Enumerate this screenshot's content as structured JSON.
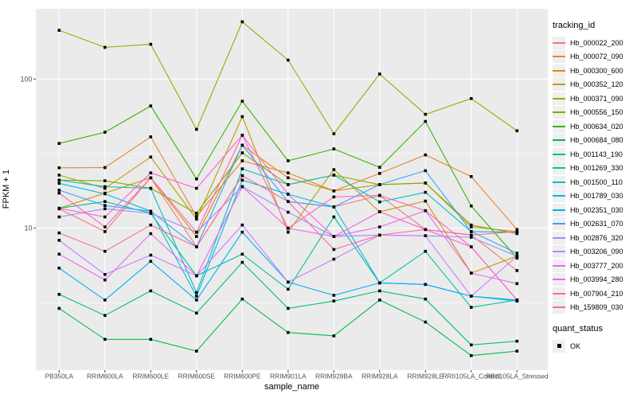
{
  "figure": {
    "background": "#FFFFFF",
    "panel_background": "#EBEBEB",
    "grid_color": "#FFFFFF",
    "tick_label_color": "#4D4D4D",
    "point_color": "#000000"
  },
  "chart_data": {
    "type": "line",
    "title": "",
    "xlabel": "sample_name",
    "ylabel": "FPKM + 1",
    "y_scale": "log10",
    "y_ticks": [
      10,
      100
    ],
    "y_minor_ticks": [
      3.162,
      31.62
    ],
    "ylim": [
      1.1,
      300
    ],
    "grid": true,
    "legend_position": "right",
    "x_categories": [
      "PB350LA",
      "RRIM600LA",
      "RRIM600LE",
      "RRIM600SE",
      "RRIM600PE",
      "RRIM901LA",
      "RRIM928BA",
      "RRIM928LA",
      "RRIM928LE",
      "RRII105LA_Control",
      "RRII105LA_Stressed"
    ],
    "point_marker": {
      "shape": "square",
      "size": 3.6,
      "color": "#000000",
      "meaning": "quant_status OK"
    },
    "series": [
      {
        "name": "Hb_000022_200",
        "color": "#F8766D",
        "values": [
          13.5,
          9.5,
          21.8,
          7.5,
          22.5,
          15.1,
          13.9,
          16.6,
          9.8,
          9.0,
          5.2
        ]
      },
      {
        "name": "Hb_000072_090",
        "color": "#EA8331",
        "values": [
          25.4,
          25.5,
          41,
          12,
          28.3,
          23.5,
          17.8,
          23.3,
          31,
          22.2,
          9.8
        ]
      },
      {
        "name": "Hb_000300_600",
        "color": "#D89000",
        "values": [
          13.6,
          17.2,
          21.8,
          8.8,
          36,
          21.8,
          17.8,
          19.6,
          20.1,
          10.2,
          9.5
        ]
      },
      {
        "name": "Hb_000352_120",
        "color": "#C09B00",
        "values": [
          22.7,
          18.5,
          30,
          11.5,
          56,
          9.4,
          24.7,
          12.9,
          15.2,
          5.0,
          6.5
        ]
      },
      {
        "name": "Hb_000371_090",
        "color": "#A3A500",
        "values": [
          212,
          163,
          171,
          46,
          242,
          134,
          43,
          108,
          58,
          74,
          45
        ]
      },
      {
        "name": "Hb_000556_150",
        "color": "#7CAE00",
        "values": [
          21,
          20.8,
          18.5,
          12.6,
          32,
          19.6,
          22.7,
          19.6,
          20.1,
          10.5,
          9.2
        ]
      },
      {
        "name": "Hb_000634_020",
        "color": "#39B600",
        "values": [
          37,
          44,
          66,
          21.4,
          71,
          28.3,
          34,
          25.6,
          52,
          14.1,
          6.3
        ]
      },
      {
        "name": "Hb_000684_080",
        "color": "#00BB4E",
        "values": [
          2.9,
          1.8,
          1.8,
          1.5,
          3.35,
          2.0,
          1.9,
          3.3,
          2.35,
          1.4,
          1.5
        ]
      },
      {
        "name": "Hb_001143_190",
        "color": "#00BF7D",
        "values": [
          3.6,
          2.6,
          3.8,
          2.7,
          5.9,
          2.9,
          3.25,
          3.8,
          3.35,
          1.65,
          1.75
        ]
      },
      {
        "name": "Hb_001269_330",
        "color": "#00C1A3",
        "values": [
          13.6,
          15.1,
          12.6,
          4.8,
          6.7,
          3.9,
          11.9,
          4.3,
          7.0,
          2.95,
          3.3
        ]
      },
      {
        "name": "Hb_001500_110",
        "color": "#00BFC4",
        "values": [
          21,
          19,
          18.5,
          3.7,
          25,
          19.6,
          22.7,
          15,
          17.4,
          9.5,
          9.4
        ]
      },
      {
        "name": "Hb_001789_030",
        "color": "#00BAE0",
        "values": [
          20,
          17,
          13,
          3.5,
          21,
          16.9,
          13.9,
          4.3,
          4.2,
          3.5,
          3.3
        ]
      },
      {
        "name": "Hb_002351_030",
        "color": "#00B0F6",
        "values": [
          5.4,
          3.3,
          6.0,
          3.3,
          9.4,
          4.35,
          3.55,
          4.3,
          4.2,
          3.5,
          3.25
        ]
      },
      {
        "name": "Hb_002631_070",
        "color": "#35A2FF",
        "values": [
          18,
          14.2,
          13,
          7.5,
          36,
          15.1,
          13.9,
          19.6,
          24.3,
          9.5,
          6.8
        ]
      },
      {
        "name": "Hb_002876_320",
        "color": "#9590FF",
        "values": [
          11.9,
          13.5,
          12.6,
          9.4,
          19,
          12.8,
          8.8,
          9.0,
          8.9,
          8.7,
          6.5
        ]
      },
      {
        "name": "Hb_003206_090",
        "color": "#C77CFF",
        "values": [
          8.3,
          4.9,
          6.6,
          4.8,
          10.5,
          4.35,
          6.2,
          9.0,
          8.9,
          3.5,
          6.5
        ]
      },
      {
        "name": "Hb_003777_200",
        "color": "#E76BF3",
        "values": [
          6.7,
          4.5,
          9.2,
          4.8,
          19,
          10,
          8.8,
          10.2,
          13.1,
          5.0,
          4.25
        ]
      },
      {
        "name": "Hb_003994_280",
        "color": "#FA62DB",
        "values": [
          13.6,
          11.9,
          23.5,
          18.5,
          42,
          16.9,
          8.8,
          12.9,
          9.8,
          7.5,
          3.3
        ]
      },
      {
        "name": "Hb_007904_210",
        "color": "#FF62BC",
        "values": [
          17.2,
          10.2,
          21.8,
          9.4,
          42,
          10,
          16.2,
          16.6,
          13.1,
          7.5,
          3.3
        ]
      },
      {
        "name": "Hb_159809_030",
        "color": "#FF6A98",
        "values": [
          9.3,
          7.0,
          10.5,
          7.5,
          22.5,
          15.1,
          7.2,
          9.0,
          9.8,
          9.0,
          9.5
        ]
      }
    ]
  },
  "legend": {
    "tracking_title": "tracking_id",
    "quant_title": "quant_status",
    "quant_items": [
      {
        "label": "OK",
        "marker": "black-square"
      }
    ]
  }
}
